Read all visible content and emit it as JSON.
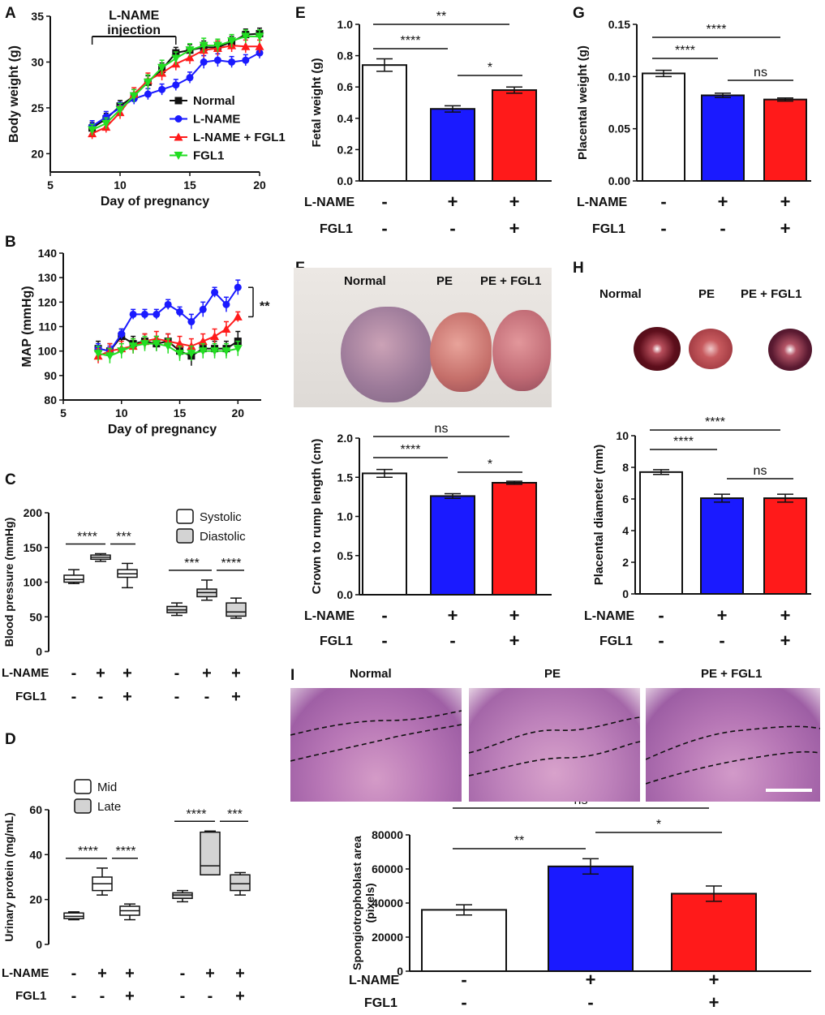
{
  "colors": {
    "normal": "#ffffff",
    "lname": "#1a1aff",
    "fgl1": "#ff1a1a",
    "green": "#22dd22",
    "black": "#111111"
  },
  "panel_letters": [
    "A",
    "B",
    "C",
    "D",
    "E",
    "F",
    "G",
    "H",
    "I"
  ],
  "treatment_rows": {
    "lname_label": "L-NAME",
    "fgl1_label": "FGL1",
    "lname_signs": [
      "-",
      "+",
      "+"
    ],
    "fgl1_signs": [
      "-",
      "-",
      "+"
    ]
  },
  "photos": {
    "fetus": {
      "labels": [
        "Normal",
        "PE",
        "PE + FGL1"
      ]
    },
    "placenta": {
      "labels": [
        "Normal",
        "PE",
        "PE + FGL1"
      ]
    },
    "histology": {
      "labels": [
        "Normal",
        "PE",
        "PE + FGL1"
      ]
    }
  },
  "chart_data": [
    {
      "panel": "A",
      "type": "line",
      "xlabel": "Day of pregnancy",
      "ylabel": "Body weight (g)",
      "xlim": [
        5,
        20
      ],
      "ylim": [
        18,
        35
      ],
      "xticks": [
        "5",
        "10",
        "15",
        "20"
      ],
      "yticks": [
        "20",
        "25",
        "30",
        "35"
      ],
      "annotation": "L-NAME injection",
      "injection_days": [
        8,
        14
      ],
      "x": [
        8,
        9,
        10,
        11,
        12,
        13,
        14,
        15,
        16,
        17,
        18,
        19,
        20
      ],
      "series": [
        {
          "name": "Normal",
          "color": "#111111",
          "marker": "square",
          "values": [
            22.8,
            23.8,
            25.2,
            26.3,
            27.8,
            29.2,
            31.0,
            31.3,
            31.6,
            31.6,
            32.2,
            33.0,
            33.1
          ],
          "errors": [
            0.6,
            0.6,
            0.6,
            0.7,
            0.7,
            0.7,
            0.6,
            0.6,
            0.7,
            0.7,
            0.6,
            0.6,
            0.6
          ]
        },
        {
          "name": "L-NAME",
          "color": "#1a1aff",
          "marker": "circle",
          "values": [
            23.0,
            24.0,
            25.0,
            26.0,
            26.5,
            27.0,
            27.5,
            28.3,
            30.0,
            30.2,
            30.0,
            30.2,
            31.0
          ],
          "errors": [
            0.6,
            0.6,
            0.6,
            0.6,
            0.6,
            0.6,
            0.6,
            0.6,
            0.7,
            0.7,
            0.6,
            0.6,
            0.6
          ]
        },
        {
          "name": "L-NAME + FGL1",
          "color": "#ff1a1a",
          "marker": "triangle",
          "values": [
            22.2,
            22.9,
            24.5,
            26.5,
            28.0,
            28.8,
            29.8,
            30.5,
            31.3,
            31.5,
            31.8,
            31.7,
            31.7
          ],
          "errors": [
            0.6,
            0.6,
            0.7,
            0.7,
            0.8,
            0.8,
            0.7,
            0.7,
            0.8,
            0.8,
            0.7,
            0.7,
            0.7
          ]
        },
        {
          "name": "FGL1",
          "color": "#22dd22",
          "marker": "triangle-down",
          "values": [
            22.6,
            23.3,
            24.8,
            26.3,
            27.8,
            29.4,
            30.4,
            31.3,
            31.8,
            31.8,
            32.3,
            32.8,
            32.8
          ],
          "errors": [
            0.6,
            0.6,
            0.7,
            0.7,
            0.8,
            0.8,
            0.7,
            0.7,
            0.8,
            0.7,
            0.7,
            0.7,
            0.7
          ]
        }
      ]
    },
    {
      "panel": "B",
      "type": "line",
      "xlabel": "Day of pregnancy",
      "ylabel": "MAP (mmHg)",
      "xlim": [
        5,
        22
      ],
      "ylim": [
        80,
        140
      ],
      "xticks": [
        "5",
        "10",
        "15",
        "20"
      ],
      "yticks": [
        "80",
        "90",
        "100",
        "110",
        "120",
        "130",
        "140"
      ],
      "significance": "**",
      "x": [
        8,
        9,
        10,
        11,
        12,
        13,
        14,
        15,
        16,
        17,
        18,
        19,
        20
      ],
      "series": [
        {
          "name": "Normal",
          "color": "#111111",
          "marker": "square",
          "values": [
            101,
            100,
            106,
            103,
            104,
            103,
            104,
            100,
            98,
            101,
            101,
            101,
            104
          ],
          "errors": [
            3,
            3,
            3,
            3,
            3,
            3,
            3,
            3,
            4,
            3,
            3,
            3,
            4
          ]
        },
        {
          "name": "L-NAME",
          "color": "#1a1aff",
          "marker": "circle",
          "values": [
            101,
            100,
            107,
            115,
            115,
            115,
            119,
            116,
            112,
            117,
            124,
            119,
            126
          ],
          "errors": [
            2,
            2,
            2,
            2,
            2,
            2,
            2,
            2,
            3,
            3,
            2,
            3,
            3
          ]
        },
        {
          "name": "L-NAME + FGL1",
          "color": "#ff1a1a",
          "marker": "triangle",
          "values": [
            98,
            100,
            101,
            102,
            104,
            105,
            104,
            103,
            102,
            104,
            106,
            109,
            114
          ],
          "errors": [
            3,
            3,
            3,
            3,
            3,
            3,
            3,
            3,
            3,
            3,
            3,
            3,
            2
          ]
        },
        {
          "name": "FGL1",
          "color": "#22dd22",
          "marker": "triangle-down",
          "values": [
            99,
            98,
            100,
            102,
            103,
            103,
            102,
            99,
            99,
            100,
            100,
            100,
            101
          ],
          "errors": [
            3,
            3,
            3,
            3,
            3,
            3,
            3,
            3,
            3,
            3,
            3,
            3,
            3
          ]
        }
      ]
    },
    {
      "panel": "C",
      "type": "box",
      "ylabel": "Blood pressure (mmHg)",
      "ylim": [
        0,
        200
      ],
      "yticks": [
        "0",
        "50",
        "100",
        "150",
        "200"
      ],
      "legend": [
        {
          "name": "Systolic",
          "color": "#ffffff"
        },
        {
          "name": "Diastolic",
          "color": "#d3d3d3"
        }
      ],
      "groups": [
        {
          "name": "Systolic",
          "color": "#ffffff",
          "sigs": [
            "****",
            "***"
          ],
          "boxes": [
            {
              "min": 98,
              "q1": 100,
              "median": 104,
              "q3": 110,
              "max": 118
            },
            {
              "min": 130,
              "q1": 133,
              "median": 136,
              "q3": 139,
              "max": 141
            },
            {
              "min": 92,
              "q1": 107,
              "median": 112,
              "q3": 118,
              "max": 127
            }
          ]
        },
        {
          "name": "Diastolic",
          "color": "#d3d3d3",
          "sigs": [
            "***",
            "****"
          ],
          "boxes": [
            {
              "min": 52,
              "q1": 56,
              "median": 60,
              "q3": 65,
              "max": 70
            },
            {
              "min": 74,
              "q1": 79,
              "median": 85,
              "q3": 90,
              "max": 103
            },
            {
              "min": 48,
              "q1": 51,
              "median": 57,
              "q3": 70,
              "max": 77
            }
          ]
        }
      ]
    },
    {
      "panel": "D",
      "type": "box",
      "ylabel": "Urinary protein (mg/mL)",
      "ylim": [
        0,
        60
      ],
      "yticks": [
        "0",
        "20",
        "40",
        "60"
      ],
      "legend": [
        {
          "name": "Mid",
          "color": "#ffffff"
        },
        {
          "name": "Late",
          "color": "#d3d3d3"
        }
      ],
      "groups": [
        {
          "name": "Mid",
          "color": "#ffffff",
          "sigs": [
            "****",
            "****"
          ],
          "boxes": [
            {
              "min": 11,
              "q1": 11.5,
              "median": 12.5,
              "q3": 14,
              "max": 14.5
            },
            {
              "min": 22,
              "q1": 24,
              "median": 27,
              "q3": 30,
              "max": 34
            },
            {
              "min": 11,
              "q1": 13,
              "median": 15,
              "q3": 17,
              "max": 18
            }
          ]
        },
        {
          "name": "Late",
          "color": "#d3d3d3",
          "sigs": [
            "****",
            "***"
          ],
          "boxes": [
            {
              "min": 19,
              "q1": 20.5,
              "median": 22,
              "q3": 23,
              "max": 24
            },
            {
              "min": 31,
              "q1": 31,
              "median": 35,
              "q3": 50,
              "max": 50.5
            },
            {
              "min": 22,
              "q1": 24,
              "median": 27,
              "q3": 31,
              "max": 32
            }
          ]
        }
      ]
    },
    {
      "panel": "E",
      "type": "bar",
      "ylabel": "Fetal weight (g)",
      "ylim": [
        0,
        1.0
      ],
      "yticks": [
        "0.0",
        "0.2",
        "0.4",
        "0.6",
        "0.8",
        "1.0"
      ],
      "categories": [
        "Normal",
        "L-NAME",
        "L-NAME + FGL1"
      ],
      "values": [
        0.74,
        0.46,
        0.58
      ],
      "errors": [
        0.04,
        0.02,
        0.02
      ],
      "comparisons": [
        {
          "from": 0,
          "to": 1,
          "label": "****"
        },
        {
          "from": 1,
          "to": 2,
          "label": "*"
        },
        {
          "from": 0,
          "to": 2,
          "label": "**"
        }
      ]
    },
    {
      "panel": "F",
      "type": "bar",
      "ylabel": "Crown to rump length (cm)",
      "ylim": [
        0,
        2.0
      ],
      "yticks": [
        "0.0",
        "0.5",
        "1.0",
        "1.5",
        "2.0"
      ],
      "categories": [
        "Normal",
        "L-NAME",
        "L-NAME + FGL1"
      ],
      "values": [
        1.55,
        1.26,
        1.43
      ],
      "errors": [
        0.05,
        0.03,
        0.02
      ],
      "comparisons": [
        {
          "from": 0,
          "to": 1,
          "label": "****"
        },
        {
          "from": 1,
          "to": 2,
          "label": "*"
        },
        {
          "from": 0,
          "to": 2,
          "label": "ns"
        }
      ]
    },
    {
      "panel": "G",
      "type": "bar",
      "ylabel": "Placental weight (g)",
      "ylim": [
        0,
        0.15
      ],
      "yticks": [
        "0.00",
        "0.05",
        "0.10",
        "0.15"
      ],
      "categories": [
        "Normal",
        "L-NAME",
        "L-NAME + FGL1"
      ],
      "values": [
        0.103,
        0.082,
        0.078
      ],
      "errors": [
        0.003,
        0.002,
        0.0015
      ],
      "comparisons": [
        {
          "from": 0,
          "to": 1,
          "label": "****"
        },
        {
          "from": 1,
          "to": 2,
          "label": "ns"
        },
        {
          "from": 0,
          "to": 2,
          "label": "****"
        }
      ]
    },
    {
      "panel": "H",
      "type": "bar",
      "ylabel": "Placental diameter (mm)",
      "ylim": [
        0,
        10
      ],
      "yticks": [
        "0",
        "2",
        "4",
        "6",
        "8",
        "10"
      ],
      "categories": [
        "Normal",
        "L-NAME",
        "L-NAME + FGL1"
      ],
      "values": [
        7.7,
        6.05,
        6.05
      ],
      "errors": [
        0.15,
        0.25,
        0.25
      ],
      "comparisons": [
        {
          "from": 0,
          "to": 1,
          "label": "****"
        },
        {
          "from": 1,
          "to": 2,
          "label": "ns"
        },
        {
          "from": 0,
          "to": 2,
          "label": "****"
        }
      ]
    },
    {
      "panel": "I",
      "type": "bar",
      "ylabel": "Spongiotrophoblast area (pixels)",
      "ylim": [
        0,
        80000
      ],
      "yticks": [
        "0",
        "20000",
        "40000",
        "60000",
        "80000"
      ],
      "categories": [
        "Normal",
        "L-NAME",
        "L-NAME + FGL1"
      ],
      "values": [
        36000,
        61500,
        45500
      ],
      "errors": [
        3000,
        4500,
        4500
      ],
      "comparisons": [
        {
          "from": 0,
          "to": 1,
          "label": "**"
        },
        {
          "from": 1,
          "to": 2,
          "label": "*"
        },
        {
          "from": 0,
          "to": 2,
          "label": "ns"
        }
      ]
    }
  ]
}
